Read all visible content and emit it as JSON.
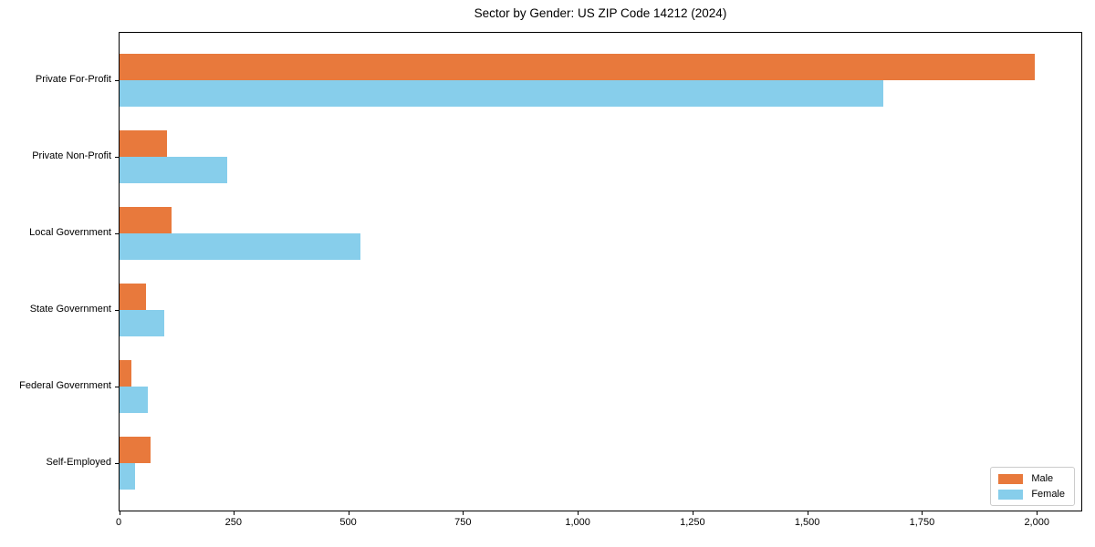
{
  "figure": {
    "background": "#ffffff"
  },
  "chart_data": {
    "type": "bar",
    "orientation": "horizontal",
    "title": "Sector by Gender: US ZIP Code 14212 (2024)",
    "categories": [
      "Private For-Profit",
      "Private Non-Profit",
      "Local Government",
      "State Government",
      "Federal Government",
      "Self-Employed"
    ],
    "series": [
      {
        "name": "Male",
        "color": "#e8793c",
        "values": [
          1994,
          103,
          113,
          57,
          26,
          67
        ]
      },
      {
        "name": "Female",
        "color": "#87ceeb",
        "values": [
          1663,
          234,
          524,
          97,
          62,
          34
        ]
      }
    ],
    "xlabel": "",
    "ylabel": "",
    "xlim": [
      0,
      2095
    ],
    "xticks": [
      0,
      250,
      500,
      750,
      1000,
      1250,
      1500,
      1750,
      2000
    ],
    "xtick_labels": [
      "0",
      "250",
      "500",
      "750",
      "1,000",
      "1,250",
      "1,500",
      "1,750",
      "2,000"
    ],
    "grid": false,
    "legend": {
      "position": "lower right",
      "entries": [
        "Male",
        "Female"
      ]
    }
  },
  "colors": {
    "axis": "#000000",
    "text": "#000000",
    "legend_border": "#cccccc",
    "plot_background": "#ffffff"
  }
}
